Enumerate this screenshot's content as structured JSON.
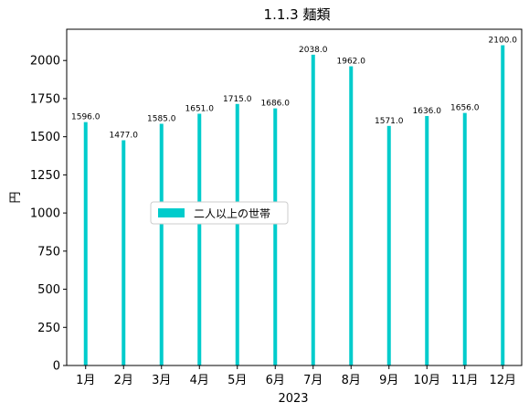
{
  "chart_data": {
    "type": "bar",
    "title": "1.1.3 麺類",
    "xlabel": "2023",
    "ylabel": "円",
    "categories": [
      "1月",
      "2月",
      "3月",
      "4月",
      "5月",
      "6月",
      "7月",
      "8月",
      "9月",
      "10月",
      "11月",
      "12月"
    ],
    "series": [
      {
        "name": "二人以上の世帯",
        "values": [
          1596.0,
          1477.0,
          1585.0,
          1651.0,
          1715.0,
          1686.0,
          2038.0,
          1962.0,
          1571.0,
          1636.0,
          1656.0,
          2100.0
        ],
        "value_labels": [
          "1596.0",
          "1477.0",
          "1585.0",
          "1651.0",
          "1715.0",
          "1686.0",
          "2038.0",
          "1962.0",
          "1571.0",
          "1636.0",
          "1656.0",
          "2100.0"
        ],
        "color": "#00cccc"
      }
    ],
    "ylim": [
      0,
      2205
    ],
    "yticks": [
      "0",
      "250",
      "500",
      "750",
      "1000",
      "1250",
      "1500",
      "1750",
      "2000"
    ],
    "grid": false,
    "legend_position": "center-left"
  }
}
